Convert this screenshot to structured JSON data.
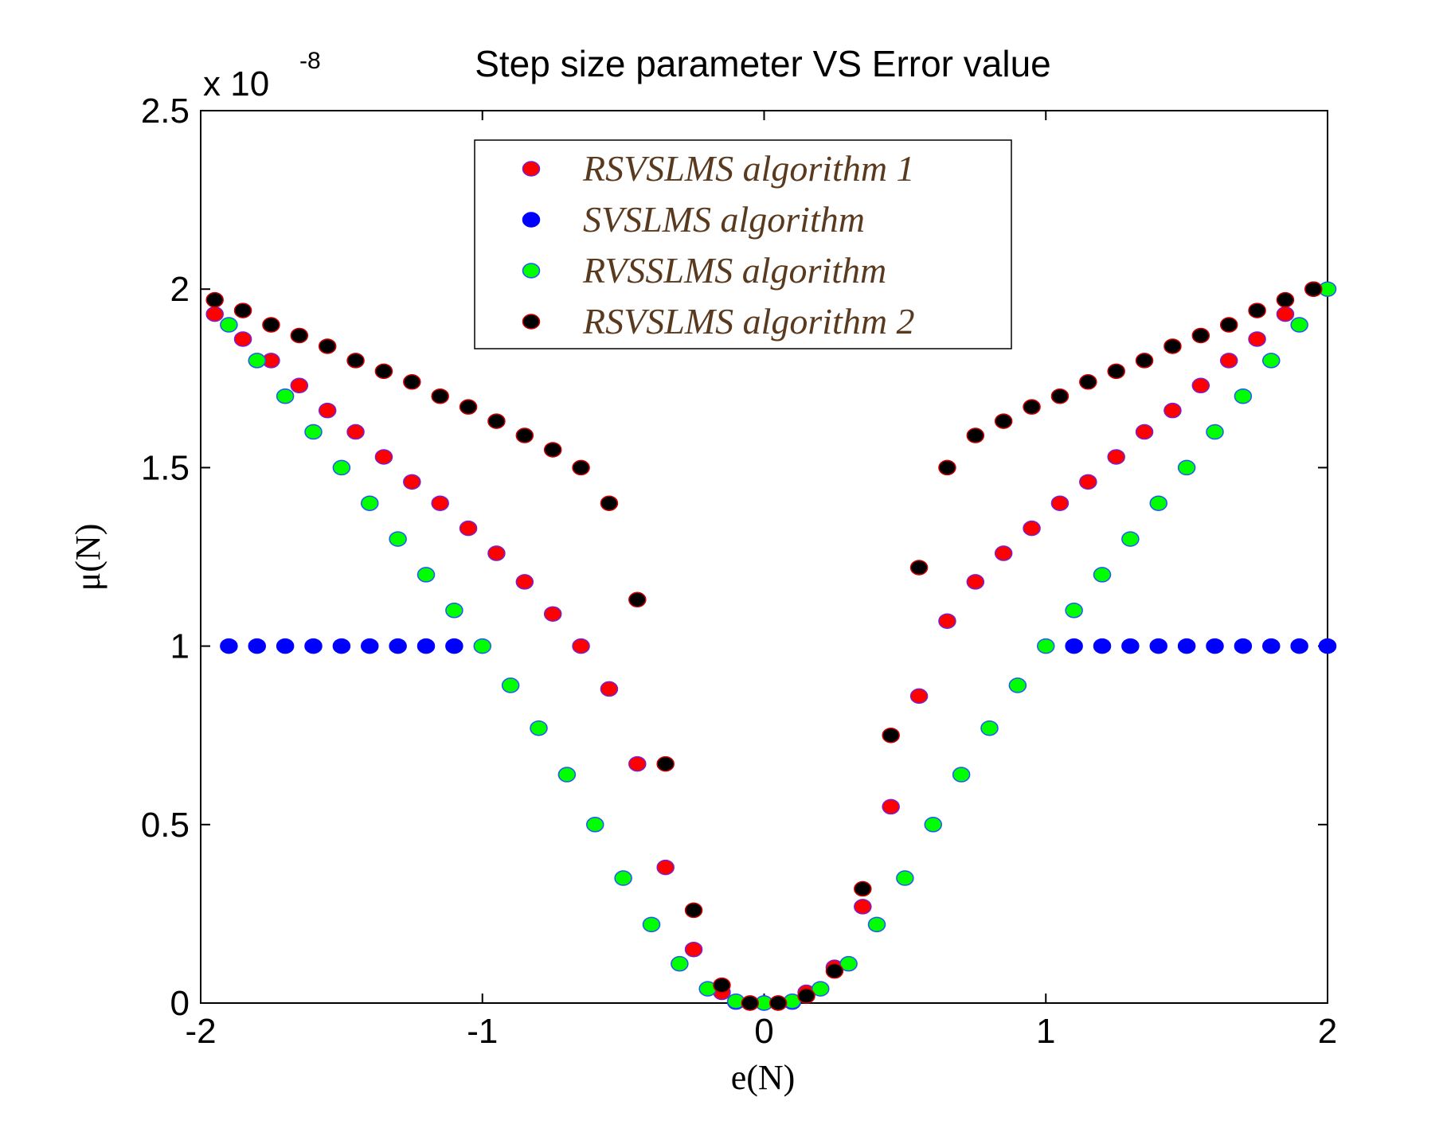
{
  "chart_data": {
    "type": "scatter",
    "title": "Step size parameter VS Error value",
    "xlabel": "e(N)",
    "ylabel": "μ(N)",
    "exponent_label": "x 10",
    "exponent_power": "-8",
    "xlim": [
      -2,
      2
    ],
    "ylim": [
      0,
      2.5
    ],
    "x_ticks": [
      -2,
      -1,
      0,
      1,
      2
    ],
    "x_tick_labels": [
      "-2",
      "-1",
      "0",
      "1",
      "2"
    ],
    "y_ticks": [
      0,
      0.5,
      1,
      1.5,
      2,
      2.5
    ],
    "y_tick_labels": [
      "0",
      "0.5",
      "1",
      "1.5",
      "2",
      "2.5"
    ],
    "grid": false,
    "legend_position": "top-center",
    "series": [
      {
        "name": "RSVSLMS algorithm 1",
        "color": "#ff0000",
        "edge_color": "#7a1fd0",
        "x": [
          -1.95,
          -1.85,
          -1.75,
          -1.65,
          -1.55,
          -1.45,
          -1.35,
          -1.25,
          -1.15,
          -1.05,
          -0.95,
          -0.85,
          -0.75,
          -0.65,
          -0.55,
          -0.45,
          -0.35,
          -0.25,
          -0.15,
          -0.05,
          0.05,
          0.15,
          0.25,
          0.35,
          0.45,
          0.55,
          0.65,
          0.75,
          0.85,
          0.95,
          1.05,
          1.15,
          1.25,
          1.35,
          1.45,
          1.55,
          1.65,
          1.75,
          1.85,
          1.95
        ],
        "y": [
          1.93,
          1.86,
          1.8,
          1.73,
          1.66,
          1.6,
          1.53,
          1.46,
          1.4,
          1.33,
          1.26,
          1.18,
          1.09,
          1.0,
          0.88,
          0.67,
          0.38,
          0.15,
          0.03,
          0.0,
          0.0,
          0.03,
          0.1,
          0.27,
          0.55,
          0.86,
          1.07,
          1.18,
          1.26,
          1.33,
          1.4,
          1.46,
          1.53,
          1.6,
          1.66,
          1.73,
          1.8,
          1.86,
          1.93,
          2.0
        ]
      },
      {
        "name": "SVSLMS algorithm",
        "color": "#0000ff",
        "edge_color": "#0000ff",
        "x": [
          -1.9,
          -1.8,
          -1.7,
          -1.6,
          -1.5,
          -1.4,
          -1.3,
          -1.2,
          -1.1,
          -0.1,
          0,
          0.1,
          1.1,
          1.2,
          1.3,
          1.4,
          1.5,
          1.6,
          1.7,
          1.8,
          1.9,
          2.0
        ],
        "y": [
          1,
          1,
          1,
          1,
          1,
          1,
          1,
          1,
          1,
          0.003,
          0,
          0.003,
          1,
          1,
          1,
          1,
          1,
          1,
          1,
          1,
          1,
          1
        ]
      },
      {
        "name": "RVSSLMS algorithm",
        "color": "#00ff00",
        "edge_color": "#2255ff",
        "x": [
          -1.9,
          -1.8,
          -1.7,
          -1.6,
          -1.5,
          -1.4,
          -1.3,
          -1.2,
          -1.1,
          -1.0,
          -0.9,
          -0.8,
          -0.7,
          -0.6,
          -0.5,
          -0.4,
          -0.3,
          -0.2,
          -0.1,
          0,
          0.1,
          0.2,
          0.3,
          0.4,
          0.5,
          0.6,
          0.7,
          0.8,
          0.9,
          1.0,
          1.1,
          1.2,
          1.3,
          1.4,
          1.5,
          1.6,
          1.7,
          1.8,
          1.9,
          2.0
        ],
        "y": [
          1.9,
          1.8,
          1.7,
          1.6,
          1.5,
          1.4,
          1.3,
          1.2,
          1.1,
          1.0,
          0.89,
          0.77,
          0.64,
          0.5,
          0.35,
          0.22,
          0.11,
          0.04,
          0.005,
          0,
          0.005,
          0.04,
          0.11,
          0.22,
          0.35,
          0.5,
          0.64,
          0.77,
          0.89,
          1.0,
          1.1,
          1.2,
          1.3,
          1.4,
          1.5,
          1.6,
          1.7,
          1.8,
          1.9,
          2.0
        ]
      },
      {
        "name": "RSVSLMS algorithm 2",
        "color": "#000000",
        "edge_color": "#cc0000",
        "x": [
          -1.95,
          -1.85,
          -1.75,
          -1.65,
          -1.55,
          -1.45,
          -1.35,
          -1.25,
          -1.15,
          -1.05,
          -0.95,
          -0.85,
          -0.75,
          -0.65,
          -0.55,
          -0.45,
          -0.35,
          -0.25,
          -0.15,
          -0.05,
          0.05,
          0.15,
          0.25,
          0.35,
          0.45,
          0.55,
          0.65,
          0.75,
          0.85,
          0.95,
          1.05,
          1.15,
          1.25,
          1.35,
          1.45,
          1.55,
          1.65,
          1.75,
          1.85,
          1.95
        ],
        "y": [
          1.97,
          1.94,
          1.9,
          1.87,
          1.84,
          1.8,
          1.77,
          1.74,
          1.7,
          1.67,
          1.63,
          1.59,
          1.55,
          1.5,
          1.4,
          1.13,
          0.67,
          0.26,
          0.05,
          0.0,
          0.0,
          0.02,
          0.09,
          0.32,
          0.75,
          1.22,
          1.5,
          1.59,
          1.63,
          1.67,
          1.7,
          1.74,
          1.77,
          1.8,
          1.84,
          1.87,
          1.9,
          1.94,
          1.97,
          2.0
        ]
      }
    ]
  }
}
